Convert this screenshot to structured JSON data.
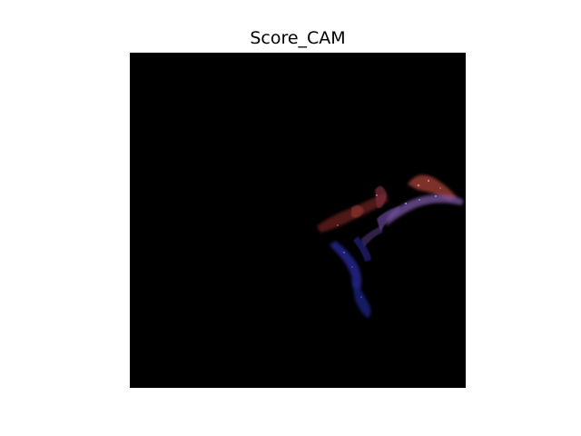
{
  "figure": {
    "title": "Score_CAM",
    "background_color": "#ffffff",
    "image_background_color": "#000000",
    "heatmap_colors": {
      "red_region": "#9b3b34",
      "purple_region": "#7f5aa8",
      "blue_region": "#2a2c9c"
    }
  }
}
